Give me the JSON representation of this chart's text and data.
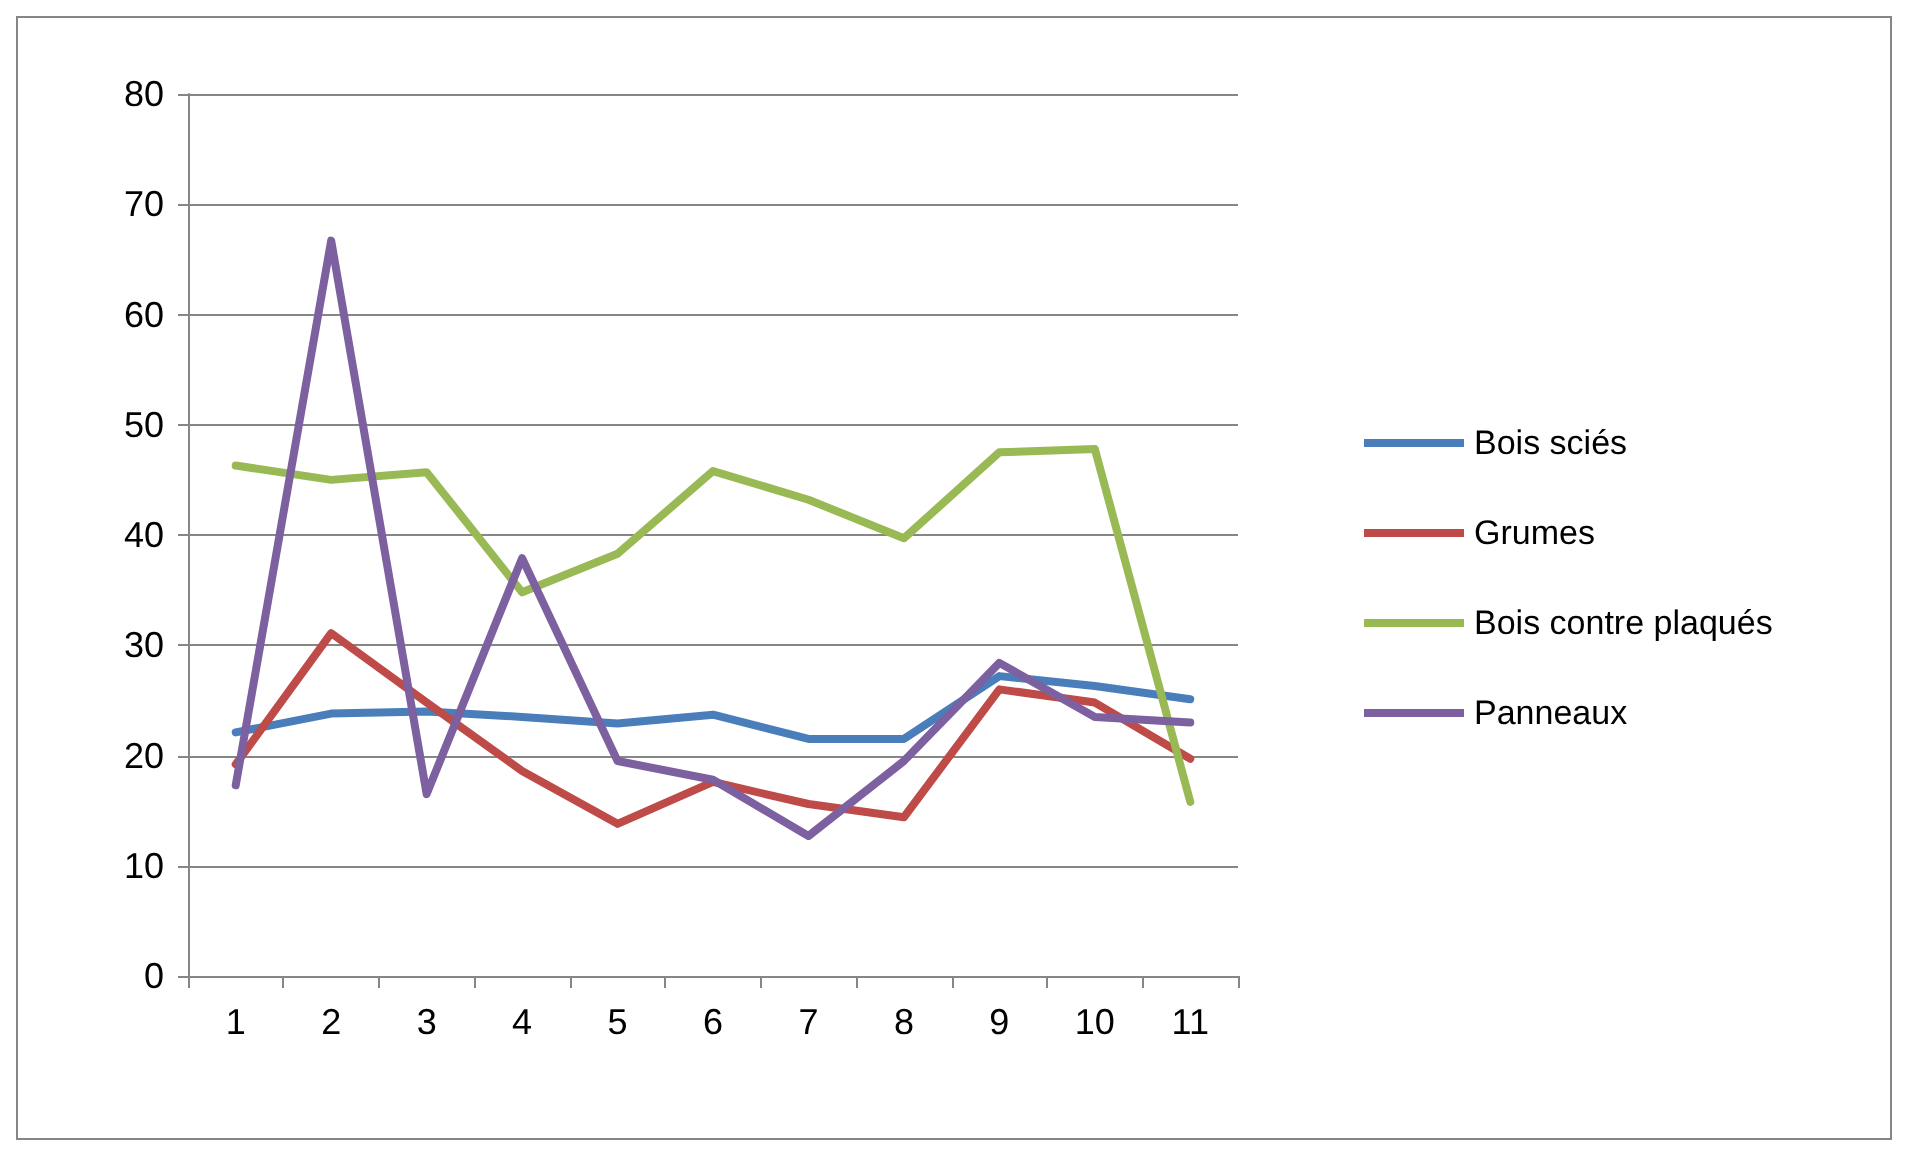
{
  "chart_data": {
    "type": "line",
    "categories": [
      "1",
      "2",
      "3",
      "4",
      "5",
      "6",
      "7",
      "8",
      "9",
      "10",
      "11"
    ],
    "ylim": [
      0,
      80
    ],
    "yticks": [
      0,
      10,
      20,
      30,
      40,
      50,
      60,
      70,
      80
    ],
    "grid": "y",
    "legend": "right",
    "marker": "none",
    "line_style": "solid",
    "series": [
      {
        "name": "Bois sciés",
        "color": "#4a7ebb",
        "values": [
          22.1,
          23.8,
          24,
          23.5,
          22.9,
          23.7,
          21.5,
          21.5,
          27.2,
          26.3,
          25.1
        ]
      },
      {
        "name": "Grumes",
        "color": "#be4b48",
        "values": [
          19.2,
          31.1,
          24.8,
          18.6,
          13.8,
          17.6,
          15.6,
          14.4,
          26,
          24.8,
          19.7
        ]
      },
      {
        "name": "Bois contre plaqués",
        "color": "#98b954",
        "values": [
          46.3,
          45,
          45.7,
          34.8,
          38.3,
          45.8,
          43.2,
          39.7,
          47.5,
          47.8,
          15.8
        ]
      },
      {
        "name": "Panneaux",
        "color": "#7d60a0",
        "values": [
          17.3,
          66.7,
          16.5,
          37.9,
          19.5,
          17.8,
          12.7,
          19.5,
          28.4,
          23.5,
          23
        ]
      }
    ]
  }
}
